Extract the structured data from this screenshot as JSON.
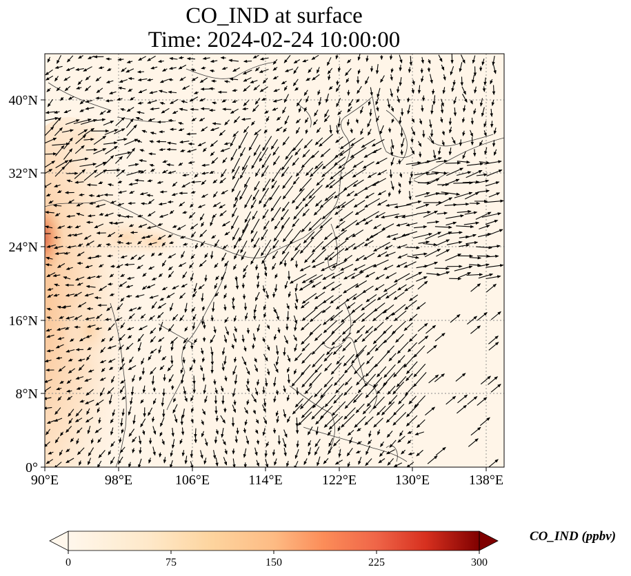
{
  "title": {
    "line1": "CO_IND at surface",
    "line2": "Time: 2024-02-24 10:00:00"
  },
  "map": {
    "variable": "CO_IND",
    "level": "surface",
    "lon_range": [
      90,
      140
    ],
    "lat_range": [
      0,
      45
    ],
    "lon_ticks": [
      "90°E",
      "98°E",
      "106°E",
      "114°E",
      "122°E",
      "130°E",
      "138°E"
    ],
    "lat_ticks": [
      "0°",
      "8°N",
      "16°N",
      "24°N",
      "32°N",
      "40°N"
    ],
    "gridlines": "dotted",
    "overlay": "wind vectors"
  },
  "colorbar": {
    "label": "CO_IND (ppbv)",
    "colormap": "OrRd",
    "ticks": [
      "0",
      "75",
      "150",
      "225",
      "300"
    ],
    "range": [
      0,
      300
    ],
    "extend": "both"
  },
  "colors": {
    "background_field": "#fff5e8",
    "plume": "#f7b377",
    "plume_core": "#c53a28",
    "coastline": "#3a3a3a",
    "arrows": "#000000"
  }
}
